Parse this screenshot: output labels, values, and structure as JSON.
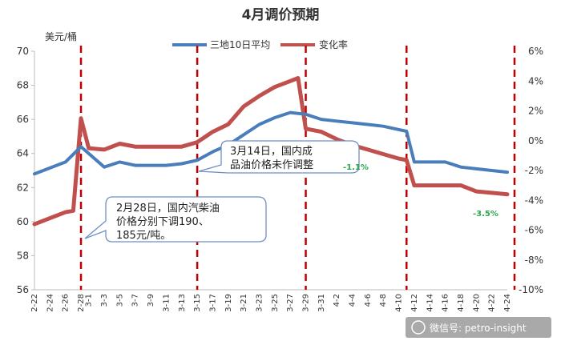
{
  "chart_data": {
    "type": "line",
    "title": "4月调价预期",
    "left_axis_unit": "美元/桶",
    "left_ylim": [
      56,
      70
    ],
    "left_yticks": [
      "56",
      "58",
      "60",
      "62",
      "64",
      "66",
      "68",
      "70"
    ],
    "right_ylim": [
      -10,
      6
    ],
    "right_yticks": [
      "-10%",
      "-8%",
      "-6%",
      "-4%",
      "-2%",
      "0%",
      "2%",
      "4%",
      "6%"
    ],
    "categories": [
      "2-22",
      "2-23",
      "2-24",
      "2-25",
      "2-26",
      "2-27",
      "2-28",
      "3-1",
      "3-2",
      "3-3",
      "3-4",
      "3-5",
      "3-6",
      "3-7",
      "3-8",
      "3-9",
      "3-10",
      "3-11",
      "3-12",
      "3-13",
      "3-14",
      "3-15",
      "3-16",
      "3-17",
      "3-18",
      "3-19",
      "3-20",
      "3-21",
      "3-22",
      "3-23",
      "3-24",
      "3-25",
      "3-26",
      "3-27",
      "3-28",
      "3-29",
      "3-30",
      "3-31",
      "4-1",
      "4-2",
      "4-3",
      "4-4",
      "4-5",
      "4-6",
      "4-7",
      "4-8",
      "4-9",
      "4-10",
      "4-11",
      "4-12",
      "4-13",
      "4-14",
      "4-15",
      "4-16",
      "4-17",
      "4-18",
      "4-19",
      "4-20",
      "4-21",
      "4-22",
      "4-23",
      "4-24"
    ],
    "x_tick_labels": [
      "2-22",
      "2-24",
      "2-26",
      "2-28",
      "3-1",
      "3-3",
      "3-5",
      "3-7",
      "3-9",
      "3-11",
      "3-13",
      "3-15",
      "3-17",
      "3-19",
      "3-21",
      "3-23",
      "3-25",
      "3-27",
      "3-29",
      "3-31",
      "4-2",
      "4-4",
      "4-6",
      "4-8",
      "4-10",
      "4-12",
      "4-14",
      "4-16",
      "4-18",
      "4-20",
      "4-22",
      "4-24"
    ],
    "series": [
      {
        "name": "三地10日平均",
        "axis": "left",
        "color": "#4a7ebb",
        "x": [
          "2-22",
          "2-26",
          "2-28",
          "3-3",
          "3-5",
          "3-7",
          "3-9",
          "3-11",
          "3-13",
          "3-15",
          "3-17",
          "3-19",
          "3-21",
          "3-23",
          "3-25",
          "3-27",
          "3-29",
          "3-31",
          "4-2",
          "4-4",
          "4-6",
          "4-8",
          "4-10",
          "4-11",
          "4-12",
          "4-13",
          "4-14",
          "4-15",
          "4-16",
          "4-18",
          "4-20",
          "4-22",
          "4-24"
        ],
        "values": [
          62.8,
          63.5,
          64.4,
          63.2,
          63.5,
          63.3,
          63.3,
          63.3,
          63.4,
          63.6,
          64.1,
          64.5,
          65.1,
          65.7,
          66.1,
          66.4,
          66.3,
          66.0,
          65.9,
          65.8,
          65.7,
          65.6,
          65.4,
          65.3,
          63.5,
          63.5,
          63.5,
          63.5,
          63.5,
          63.2,
          63.1,
          63.0,
          62.9
        ]
      },
      {
        "name": "变化率",
        "axis": "right",
        "color": "#c0504d",
        "x": [
          "2-22",
          "2-24",
          "2-26",
          "2-27",
          "2-28",
          "3-1",
          "3-3",
          "3-5",
          "3-7",
          "3-9",
          "3-11",
          "3-13",
          "3-15",
          "3-17",
          "3-19",
          "3-21",
          "3-23",
          "3-25",
          "3-27",
          "3-28",
          "3-29",
          "3-31",
          "4-2",
          "4-4",
          "4-6",
          "4-8",
          "4-10",
          "4-11",
          "4-12",
          "4-13",
          "4-14",
          "4-15",
          "4-16",
          "4-18",
          "4-20",
          "4-22",
          "4-24"
        ],
        "values": [
          -5.6,
          -5.2,
          -4.8,
          -4.7,
          1.5,
          -0.5,
          -0.6,
          -0.2,
          -0.4,
          -0.4,
          -0.4,
          -0.4,
          -0.1,
          0.6,
          1.1,
          2.3,
          3.0,
          3.6,
          4.0,
          4.2,
          0.8,
          0.6,
          0.1,
          -0.3,
          -0.6,
          -0.9,
          -1.2,
          -1.3,
          -3.0,
          -3.0,
          -3.0,
          -3.0,
          -3.0,
          -3.0,
          -3.4,
          -3.5,
          -3.6
        ]
      }
    ],
    "event_lines_x": [
      "2-28",
      "3-15",
      "3-29",
      "4-11",
      "4-24"
    ],
    "annotations": {
      "callout1": [
        "2月28日，国内汽柴油",
        "价格分别下调190、",
        "185元/吨。"
      ],
      "callout2": [
        "3月14日，国内成",
        "品油价格未作调整"
      ],
      "rate_note1": "-1.1%",
      "rate_note2": "-3.5%"
    },
    "legend_position": "top",
    "grid": false
  },
  "watermark": "微信号: petro-insight"
}
